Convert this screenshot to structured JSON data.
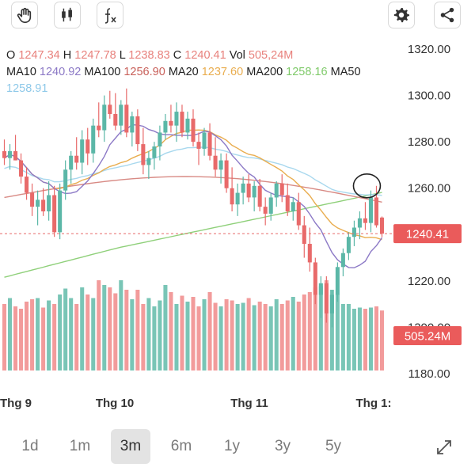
{
  "toolbar": {
    "left_icons": [
      "hand-icon",
      "candlestick-icon",
      "function-icon"
    ],
    "right_icons": [
      "gear-icon",
      "share-icon"
    ]
  },
  "ohlc": {
    "o_label": "O",
    "o": "1247.34",
    "h_label": "H",
    "h": "1247.78",
    "l_label": "L",
    "l": "1238.83",
    "c_label": "C",
    "c": "1240.41",
    "vol_label": "Vol",
    "vol": "505,24M",
    "ma10_label": "MA10",
    "ma10": "1240.92",
    "ma100_label": "MA100",
    "ma100": "1256.90",
    "ma20_label": "MA20",
    "ma20": "1237.60",
    "ma200_label": "MA200",
    "ma200": "1258.16",
    "ma50_label": "MA50",
    "ma50": "1258.91"
  },
  "colors": {
    "up": "#5bb7a7",
    "down": "#e86a6a",
    "vol_up": "#79c5b6",
    "vol_down": "#f29b9b",
    "ma10": "#8c79c6",
    "ma20": "#e9ad4f",
    "ma50": "#a8d8ee",
    "ma100": "#d88a84",
    "ma200": "#8fd07a"
  },
  "chart_data": {
    "type": "candlestick",
    "ylim": [
      1180,
      1320
    ],
    "y_ticks": [
      "1320.00",
      "1300.00",
      "1280.00",
      "1260.00",
      "1240.00",
      "1220.00",
      "1200.00",
      "1180.00"
    ],
    "x_labels": [
      "Thg 9",
      "Thg 10",
      "Thg 11",
      "Thg 1:"
    ],
    "last_price_label": "1240.41",
    "last_volume_label": "505.24M",
    "ohlc": [
      [
        1276,
        1281,
        1270,
        1273
      ],
      [
        1273,
        1279,
        1268,
        1276
      ],
      [
        1276,
        1283,
        1272,
        1272
      ],
      [
        1272,
        1275,
        1262,
        1265
      ],
      [
        1265,
        1269,
        1255,
        1258
      ],
      [
        1258,
        1262,
        1248,
        1252
      ],
      [
        1252,
        1259,
        1244,
        1255
      ],
      [
        1255,
        1260,
        1248,
        1250
      ],
      [
        1250,
        1263,
        1246,
        1257
      ],
      [
        1257,
        1261,
        1239,
        1241
      ],
      [
        1241,
        1262,
        1238,
        1259
      ],
      [
        1259,
        1272,
        1255,
        1268
      ],
      [
        1268,
        1276,
        1262,
        1274
      ],
      [
        1274,
        1282,
        1268,
        1271
      ],
      [
        1271,
        1285,
        1266,
        1281
      ],
      [
        1281,
        1286,
        1270,
        1275
      ],
      [
        1275,
        1290,
        1271,
        1287
      ],
      [
        1287,
        1297,
        1282,
        1285
      ],
      [
        1285,
        1300,
        1280,
        1296
      ],
      [
        1296,
        1302,
        1290,
        1292
      ],
      [
        1292,
        1301,
        1285,
        1287
      ],
      [
        1287,
        1298,
        1283,
        1296
      ],
      [
        1296,
        1303,
        1282,
        1284
      ],
      [
        1284,
        1293,
        1278,
        1291
      ],
      [
        1291,
        1294,
        1276,
        1279
      ],
      [
        1279,
        1286,
        1266,
        1270
      ],
      [
        1270,
        1276,
        1264,
        1273
      ],
      [
        1273,
        1280,
        1268,
        1278
      ],
      [
        1278,
        1287,
        1272,
        1284
      ],
      [
        1284,
        1292,
        1281,
        1289
      ],
      [
        1289,
        1296,
        1284,
        1287
      ],
      [
        1287,
        1297,
        1280,
        1293
      ],
      [
        1293,
        1296,
        1282,
        1284
      ],
      [
        1284,
        1293,
        1281,
        1290
      ],
      [
        1290,
        1294,
        1278,
        1280
      ],
      [
        1280,
        1284,
        1270,
        1277
      ],
      [
        1277,
        1286,
        1274,
        1284
      ],
      [
        1284,
        1288,
        1272,
        1274
      ],
      [
        1274,
        1282,
        1265,
        1268
      ],
      [
        1268,
        1275,
        1262,
        1272
      ],
      [
        1272,
        1275,
        1258,
        1260
      ],
      [
        1260,
        1269,
        1250,
        1253
      ],
      [
        1253,
        1262,
        1248,
        1258
      ],
      [
        1258,
        1265,
        1253,
        1262
      ],
      [
        1262,
        1266,
        1254,
        1256
      ],
      [
        1256,
        1263,
        1250,
        1261
      ],
      [
        1261,
        1264,
        1250,
        1252
      ],
      [
        1252,
        1256,
        1244,
        1249
      ],
      [
        1249,
        1258,
        1246,
        1256
      ],
      [
        1256,
        1263,
        1252,
        1262
      ],
      [
        1262,
        1266,
        1254,
        1257
      ],
      [
        1257,
        1262,
        1248,
        1250
      ],
      [
        1250,
        1256,
        1246,
        1254
      ],
      [
        1254,
        1258,
        1242,
        1244
      ],
      [
        1244,
        1248,
        1230,
        1236
      ],
      [
        1236,
        1243,
        1224,
        1228
      ],
      [
        1228,
        1230,
        1210,
        1214
      ],
      [
        1214,
        1222,
        1204,
        1219
      ],
      [
        1219,
        1222,
        1202,
        1206
      ],
      [
        1206,
        1216,
        1200,
        1214
      ],
      [
        1214,
        1228,
        1211,
        1226
      ],
      [
        1226,
        1234,
        1222,
        1232
      ],
      [
        1232,
        1241,
        1229,
        1239
      ],
      [
        1239,
        1246,
        1235,
        1243
      ],
      [
        1243,
        1250,
        1238,
        1247
      ],
      [
        1247,
        1254,
        1242,
        1245
      ],
      [
        1245,
        1259,
        1241,
        1256
      ],
      [
        1256,
        1261,
        1243,
        1244
      ],
      [
        1247.34,
        1247.78,
        1238.83,
        1240.41
      ]
    ],
    "volume_millions": [
      560,
      610,
      540,
      520,
      580,
      600,
      610,
      530,
      590,
      560,
      640,
      690,
      610,
      560,
      700,
      640,
      610,
      760,
      720,
      700,
      650,
      760,
      680,
      600,
      680,
      560,
      610,
      540,
      590,
      720,
      660,
      560,
      630,
      580,
      620,
      540,
      600,
      660,
      570,
      540,
      600,
      590,
      560,
      570,
      610,
      550,
      580,
      560,
      540,
      600,
      560,
      590,
      620,
      580,
      640,
      660,
      700,
      710,
      760,
      680,
      640,
      560,
      560,
      520,
      530,
      520,
      530,
      540,
      505.24
    ]
  },
  "tabs": [
    "1d",
    "1m",
    "3m",
    "6m",
    "1y",
    "3y",
    "5y"
  ],
  "active_tab": "3m",
  "expand_icon": "expand-icon"
}
